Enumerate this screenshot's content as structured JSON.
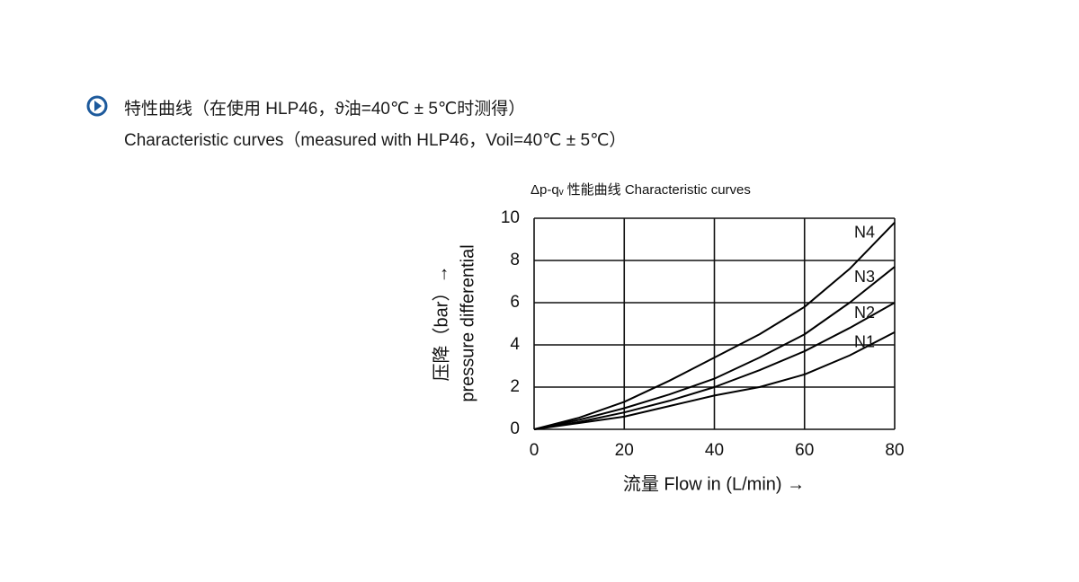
{
  "header": {
    "line1": "特性曲线（在使用 HLP46，ϑ油=40℃ ± 5℃时测得）",
    "line2": "Characteristic curves（measured with HLP46，Voil=40℃ ± 5℃）"
  },
  "chart_data": {
    "type": "line",
    "title": "Δp-qᵥ 性能曲线   Characteristic curves",
    "x_label": "流量  Flow in (L/min) →",
    "y_label": [
      "压降（bar）→",
      "pressure differential"
    ],
    "x": [
      0,
      10,
      20,
      30,
      40,
      50,
      60,
      70,
      80
    ],
    "series": [
      {
        "name": "N1",
        "color": "#000000",
        "values": [
          0,
          0.3,
          0.6,
          1.1,
          1.6,
          2.0,
          2.6,
          3.5,
          4.6
        ]
      },
      {
        "name": "N2",
        "color": "#000000",
        "values": [
          0,
          0.35,
          0.8,
          1.35,
          2.0,
          2.8,
          3.7,
          4.8,
          6.0
        ]
      },
      {
        "name": "N3",
        "color": "#000000",
        "values": [
          0,
          0.45,
          1.0,
          1.65,
          2.4,
          3.4,
          4.5,
          6.0,
          7.7
        ]
      },
      {
        "name": "N4",
        "color": "#000000",
        "values": [
          0,
          0.55,
          1.3,
          2.3,
          3.4,
          4.5,
          5.8,
          7.6,
          9.8
        ]
      }
    ],
    "xlim": [
      0,
      80
    ],
    "xticks": [
      0,
      20,
      40,
      60,
      80
    ],
    "ylim": [
      0,
      10
    ],
    "yticks": [
      0,
      2,
      4,
      6,
      8,
      10
    ],
    "grid": true
  }
}
